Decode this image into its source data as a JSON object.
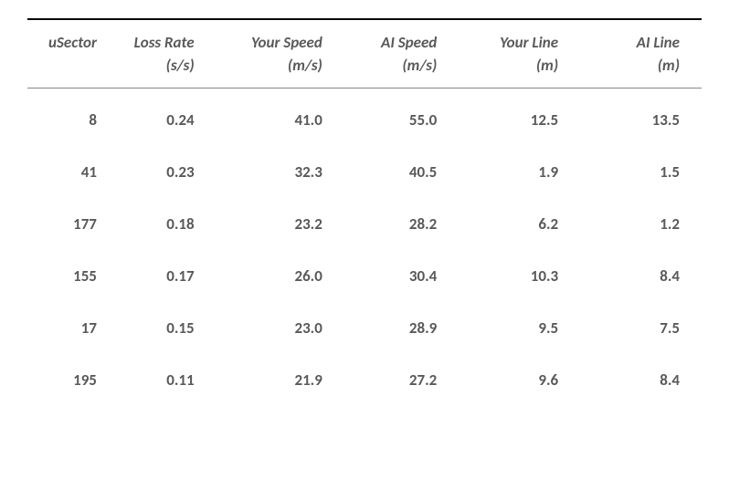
{
  "table": {
    "type": "table",
    "background_color": "#ffffff",
    "text_color": "#595959",
    "border_top_color": "#000000",
    "border_top_width": 2,
    "header_divider_color": "#888888",
    "header_divider_width": 1,
    "font_family": "Calibri",
    "header_font_style": "italic",
    "header_font_weight": "bold",
    "header_fontsize": 17,
    "cell_font_weight": "bold",
    "cell_fontsize": 17,
    "text_align": "right",
    "columns": [
      {
        "label": "uSector",
        "unit": "",
        "width_pct": 13
      },
      {
        "label": "Loss Rate",
        "unit": "(s/s)",
        "width_pct": 15
      },
      {
        "label": "Your Speed",
        "unit": "(m/s)",
        "width_pct": 19
      },
      {
        "label": "AI Speed",
        "unit": "(m/s)",
        "width_pct": 17
      },
      {
        "label": "Your Line",
        "unit": "(m)",
        "width_pct": 18
      },
      {
        "label": "AI Line",
        "unit": "(m)",
        "width_pct": 18
      }
    ],
    "rows": [
      [
        "8",
        "0.24",
        "41.0",
        "55.0",
        "12.5",
        "13.5"
      ],
      [
        "41",
        "0.23",
        "32.3",
        "40.5",
        "1.9",
        "1.5"
      ],
      [
        "177",
        "0.18",
        "23.2",
        "28.2",
        "6.2",
        "1.2"
      ],
      [
        "155",
        "0.17",
        "26.0",
        "30.4",
        "10.3",
        "8.4"
      ],
      [
        "17",
        "0.15",
        "23.0",
        "28.9",
        "9.5",
        "7.5"
      ],
      [
        "195",
        "0.11",
        "21.9",
        "27.2",
        "9.6",
        "8.4"
      ]
    ]
  }
}
